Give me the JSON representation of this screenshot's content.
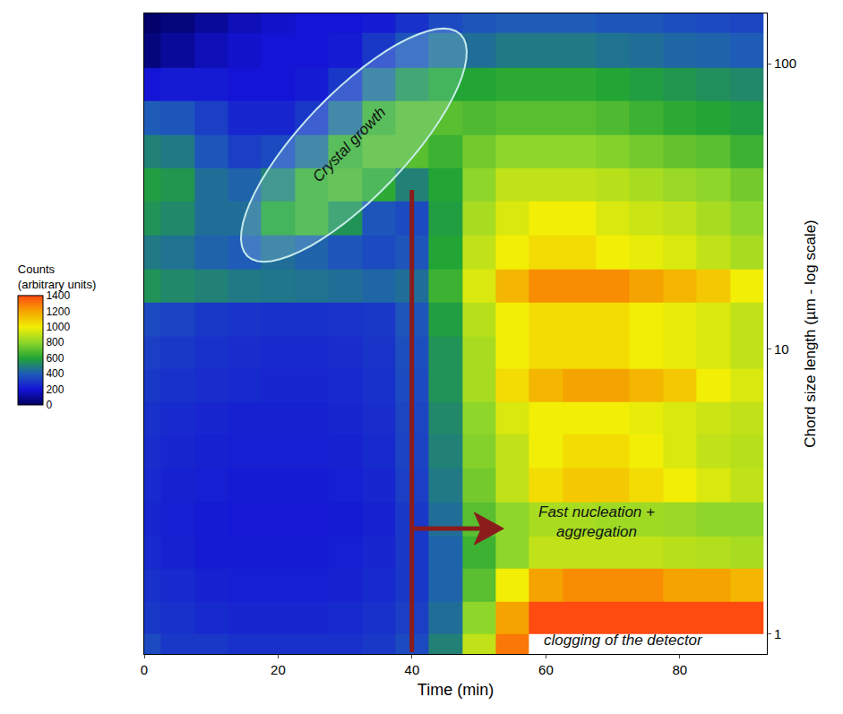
{
  "chart_data": {
    "type": "heatmap",
    "x_label": "Time (min)",
    "y_label": "Chord size length (µm - log scale)",
    "log": "y",
    "grid": false,
    "xlim": [
      0,
      93
    ],
    "xticks": [
      0,
      20,
      40,
      60,
      80
    ],
    "ylim": [
      0.85,
      150
    ],
    "yticks": [
      1,
      10,
      100
    ],
    "x": [
      0,
      5,
      10,
      15,
      20,
      25,
      30,
      35,
      40,
      45,
      50,
      55,
      60,
      65,
      70,
      75,
      80,
      85,
      90
    ],
    "y_bins": [
      0.8,
      1.0,
      1.3,
      1.7,
      2.2,
      2.9,
      3.8,
      5,
      6.5,
      8.5,
      11,
      14.5,
      19,
      25,
      33,
      43,
      56,
      74,
      97,
      128,
      170
    ],
    "z": [
      [
        350,
        300,
        300,
        280,
        280,
        280,
        280,
        300,
        350,
        500,
        900,
        1300,
        null,
        null,
        null,
        null,
        null,
        null,
        null
      ],
      [
        300,
        280,
        260,
        250,
        250,
        250,
        260,
        280,
        320,
        450,
        800,
        1200,
        1400,
        1400,
        1400,
        1400,
        1400,
        1400,
        1400
      ],
      [
        280,
        260,
        240,
        230,
        230,
        230,
        240,
        260,
        300,
        420,
        700,
        1000,
        1200,
        1250,
        1250,
        1250,
        1200,
        1200,
        1150
      ],
      [
        260,
        240,
        220,
        220,
        220,
        220,
        230,
        250,
        300,
        420,
        650,
        800,
        900,
        900,
        900,
        900,
        880,
        870,
        850
      ],
      [
        250,
        230,
        220,
        210,
        210,
        210,
        220,
        240,
        300,
        450,
        700,
        800,
        850,
        850,
        830,
        830,
        820,
        800,
        800
      ],
      [
        260,
        240,
        230,
        220,
        220,
        220,
        230,
        250,
        320,
        480,
        750,
        900,
        1050,
        1100,
        1100,
        1050,
        1000,
        950,
        900
      ],
      [
        270,
        250,
        240,
        230,
        230,
        230,
        240,
        260,
        330,
        500,
        780,
        900,
        1000,
        1050,
        1050,
        1000,
        950,
        900,
        880
      ],
      [
        280,
        260,
        250,
        240,
        240,
        240,
        250,
        270,
        340,
        520,
        800,
        950,
        1000,
        1000,
        1000,
        980,
        950,
        920,
        900
      ],
      [
        300,
        280,
        270,
        260,
        250,
        250,
        260,
        280,
        350,
        550,
        850,
        1050,
        1150,
        1200,
        1200,
        1150,
        1100,
        1000,
        950
      ],
      [
        320,
        300,
        280,
        270,
        260,
        260,
        270,
        290,
        360,
        550,
        850,
        1000,
        1050,
        1050,
        1050,
        1000,
        980,
        950,
        900
      ],
      [
        350,
        330,
        300,
        290,
        280,
        280,
        290,
        300,
        380,
        580,
        880,
        1000,
        1050,
        1050,
        1050,
        1000,
        980,
        950,
        900
      ],
      [
        550,
        520,
        500,
        480,
        470,
        460,
        450,
        430,
        450,
        650,
        950,
        1150,
        1250,
        1250,
        1250,
        1200,
        1150,
        1100,
        1000
      ],
      [
        480,
        460,
        420,
        400,
        450,
        420,
        380,
        350,
        380,
        600,
        900,
        1000,
        1050,
        1050,
        1000,
        980,
        950,
        900,
        850
      ],
      [
        550,
        520,
        450,
        450,
        600,
        650,
        550,
        380,
        350,
        580,
        850,
        950,
        1000,
        1000,
        950,
        920,
        900,
        850,
        800
      ],
      [
        580,
        560,
        450,
        420,
        500,
        650,
        680,
        620,
        500,
        600,
        800,
        900,
        900,
        900,
        880,
        850,
        820,
        800,
        750
      ],
      [
        500,
        480,
        380,
        320,
        350,
        450,
        650,
        700,
        700,
        650,
        750,
        800,
        800,
        800,
        780,
        750,
        720,
        700,
        650
      ],
      [
        400,
        380,
        320,
        250,
        250,
        300,
        450,
        650,
        700,
        700,
        680,
        700,
        700,
        700,
        680,
        650,
        620,
        600,
        580
      ],
      [
        200,
        220,
        220,
        200,
        200,
        220,
        300,
        450,
        550,
        600,
        600,
        620,
        620,
        620,
        600,
        580,
        560,
        540,
        520
      ],
      [
        50,
        100,
        150,
        180,
        200,
        200,
        220,
        300,
        380,
        450,
        450,
        480,
        480,
        480,
        460,
        450,
        430,
        420,
        400
      ],
      [
        20,
        50,
        100,
        150,
        180,
        200,
        200,
        220,
        280,
        350,
        380,
        400,
        400,
        400,
        380,
        380,
        360,
        350,
        340
      ]
    ],
    "colorbar": {
      "title": "Counts (arbitrary units)",
      "range": [
        0,
        1400
      ],
      "ticks": [
        0,
        200,
        400,
        600,
        800,
        1000,
        1200,
        1400
      ]
    },
    "annotations": [
      "Crystal growth",
      "Fast nucleation + aggregation",
      "clogging of the detector"
    ]
  }
}
